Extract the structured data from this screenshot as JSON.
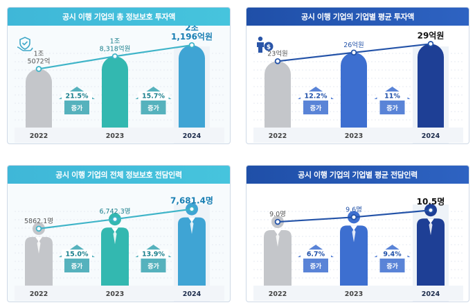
{
  "colors": {
    "teal_header": "#3fb7d8",
    "navy_header": "#1f4fa8",
    "gray_bar": "#c4c6ca",
    "teal_bar": "#33b8b0",
    "sky_bar": "#3fa4d4",
    "blue_bar": "#3d6fd0",
    "navy_bar": "#1e3f95",
    "arrow_teal": "#3aa5b2",
    "arrow_blue": "#3d6fd0"
  },
  "chart_data": [
    {
      "type": "bar",
      "title": "공시 이행 기업의 총 정보보호 투자액",
      "categories": [
        "2022",
        "2023",
        "2024"
      ],
      "values": [
        1.5072,
        1.8318,
        2.1196
      ],
      "value_labels": [
        [
          "1조",
          "5072억"
        ],
        [
          "1조",
          "8,318억원"
        ],
        [
          "2조",
          "1,196억원"
        ]
      ],
      "growth": [
        {
          "rate": "21.5%",
          "label": "증가"
        },
        {
          "rate": "15.7%",
          "label": "증가"
        }
      ],
      "ylim": [
        0,
        2.3
      ],
      "icon": "hand-shield-icon"
    },
    {
      "type": "bar",
      "title": "공시 이행 기업의 기업별 평균 투자액",
      "categories": [
        "2022",
        "2023",
        "2024"
      ],
      "values": [
        23,
        26,
        29
      ],
      "value_labels": [
        [
          "23억원"
        ],
        [
          "26억원"
        ],
        [
          "29억원"
        ]
      ],
      "growth": [
        {
          "rate": "12.2%",
          "label": "증가"
        },
        {
          "rate": "11%",
          "label": "증가"
        }
      ],
      "ylim": [
        0,
        31
      ],
      "icon": "person-money-icon"
    },
    {
      "type": "bar",
      "title": "공시 이행 기업의 전체 정보보호 전담인력",
      "categories": [
        "2022",
        "2023",
        "2024"
      ],
      "values": [
        5862.1,
        6742.3,
        7681.4
      ],
      "value_labels": [
        [
          "5862.1명"
        ],
        [
          "6,742.3명"
        ],
        [
          "7,681.4명"
        ]
      ],
      "growth": [
        {
          "rate": "15.0%",
          "label": "증가"
        },
        {
          "rate": "13.9%",
          "label": "증가"
        }
      ],
      "ylim": [
        0,
        8300
      ]
    },
    {
      "type": "bar",
      "title": "공시 이행 기업의 기업별 평균 전담인력",
      "categories": [
        "2022",
        "2023",
        "2024"
      ],
      "values": [
        9.0,
        9.6,
        10.5
      ],
      "value_labels": [
        [
          "9.0명"
        ],
        [
          "9.6명"
        ],
        [
          "10.5명"
        ]
      ],
      "growth": [
        {
          "rate": "6.7%",
          "label": "증가"
        },
        {
          "rate": "9.4%",
          "label": "증가"
        }
      ],
      "ylim": [
        0,
        11.5
      ]
    }
  ]
}
